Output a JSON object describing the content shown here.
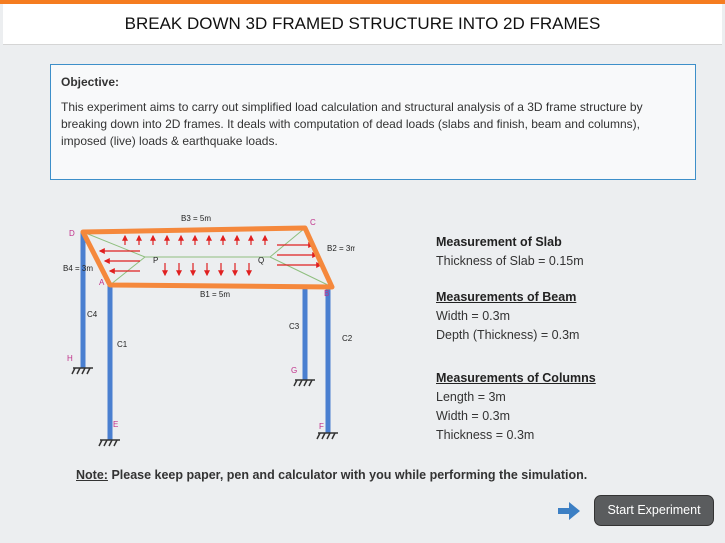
{
  "header": {
    "title": "BREAK DOWN 3D FRAMED STRUCTURE INTO 2D FRAMES"
  },
  "objective": {
    "heading": "Objective:",
    "text": "This experiment aims to carry out simplified load calculation and structural analysis of a 3D frame structure by breaking down into 2D frames. It deals with computation of dead loads (slabs and finish, beam and columns), imposed (live) loads & earthquake loads."
  },
  "diagram": {
    "labels": [
      "B3 = 5m",
      "D",
      "C",
      "B2 = 3m",
      "B4 = 3m",
      "P",
      "Q",
      "A",
      "B",
      "B1 = 5m",
      "C4",
      "C1",
      "C3",
      "C2",
      "H",
      "G",
      "E",
      "F"
    ]
  },
  "measurements": {
    "slab": {
      "heading": "Measurement of Slab",
      "items": [
        "Thickness of Slab = 0.15m"
      ]
    },
    "beam": {
      "heading": "Measurements of Beam",
      "items": [
        "Width = 0.3m",
        "Depth (Thickness) = 0.3m"
      ]
    },
    "columns": {
      "heading": "Measurements of Columns",
      "items": [
        "Length = 3m",
        "Width = 0.3m",
        "Thickness = 0.3m"
      ]
    }
  },
  "note": {
    "label": "Note:",
    "text": "Please keep paper, pen and calculator with you while performing the simulation."
  },
  "button": {
    "label": "Start Experiment"
  }
}
